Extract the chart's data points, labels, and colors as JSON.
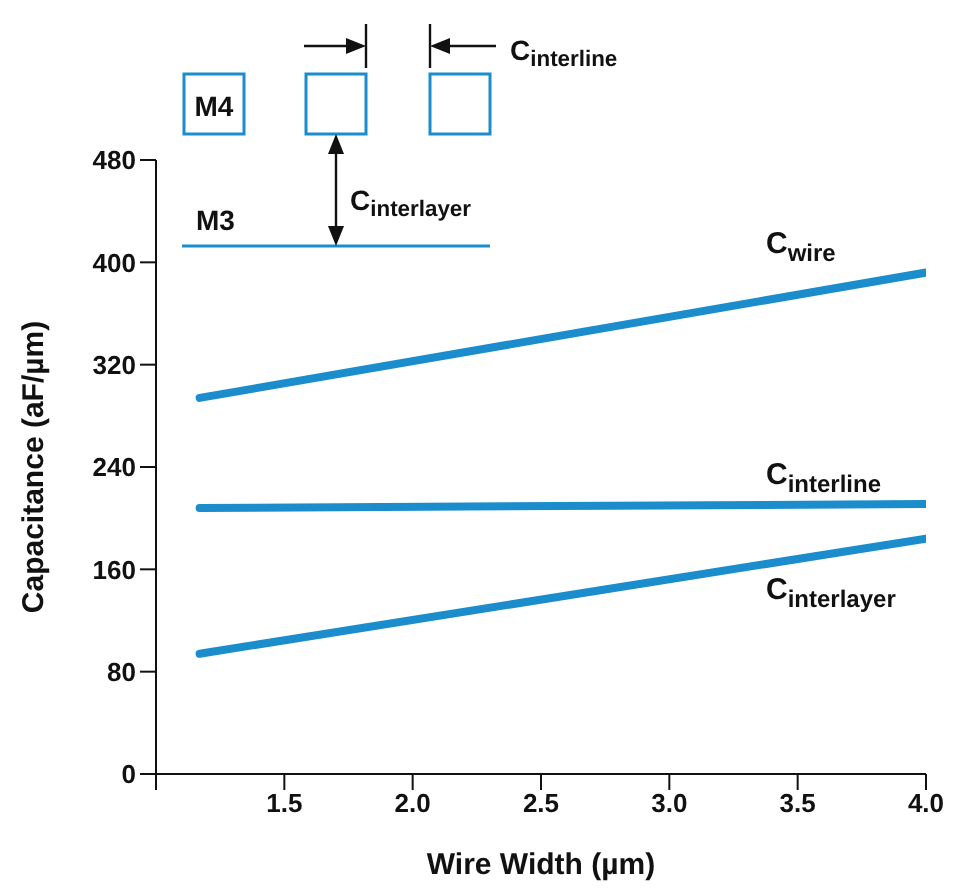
{
  "chart_data": {
    "type": "line",
    "xlabel": "Wire Width (µm)",
    "ylabel": "Capacitance (aF/µm)",
    "x": [
      1.17,
      4.0
    ],
    "series": [
      {
        "name": "C$_{wire}$",
        "color": "#1b8dcc",
        "values": [
          294,
          392
        ]
      },
      {
        "name": "C$_{interline}$",
        "color": "#1b8dcc",
        "values": [
          208,
          211
        ]
      },
      {
        "name": "C$_{interlayer}$",
        "color": "#1b8dcc",
        "values": [
          94,
          184
        ]
      }
    ],
    "xlim": [
      1.0,
      4.0
    ],
    "xticks": [
      {
        "value": 1.0,
        "label": null
      },
      {
        "value": 1.5,
        "label": "1.5"
      },
      {
        "value": 2.0,
        "label": "2.0"
      },
      {
        "value": 2.5,
        "label": "2.5"
      },
      {
        "value": 3.0,
        "label": "3.0"
      },
      {
        "value": 3.5,
        "label": "3.5"
      },
      {
        "value": 4.0,
        "label": "4.0"
      }
    ],
    "ylim": [
      0,
      480
    ],
    "yticks": [
      0,
      80,
      160,
      240,
      320,
      400,
      480
    ],
    "marker": "none",
    "line_style": "solid",
    "annotations": [
      "C$_{interline}$",
      "M4",
      "C$_{interlayer}$",
      "M3"
    ]
  }
}
